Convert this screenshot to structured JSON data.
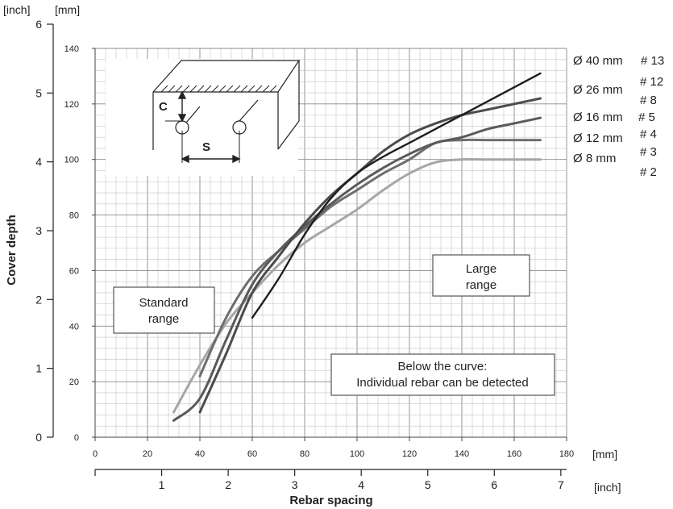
{
  "chart_data": {
    "type": "line",
    "title": "",
    "xlabel": "Rebar spacing",
    "ylabel": "Cover depth",
    "x_unit_primary": "[mm]",
    "x_unit_secondary": "[inch]",
    "y_unit_primary": "[mm]",
    "y_unit_secondary": "[inch]",
    "xlim": [
      0,
      180
    ],
    "ylim": [
      0,
      140
    ],
    "x_ticks_mm": [
      "0",
      "20",
      "40",
      "60",
      "80",
      "100",
      "120",
      "140",
      "160",
      "180"
    ],
    "x_ticks_inch": [
      "1",
      "2",
      "3",
      "4",
      "5",
      "6",
      "7"
    ],
    "y_ticks_mm": [
      "0",
      "20",
      "40",
      "60",
      "80",
      "100",
      "120",
      "140"
    ],
    "y_ticks_inch": [
      "0",
      "1",
      "2",
      "3",
      "4",
      "5",
      "6"
    ],
    "grid": true,
    "series": [
      {
        "name": "Ø 40 mm",
        "label_us": "# 13",
        "color": "#1e1e1e",
        "x": [
          60,
          70,
          80,
          90,
          100,
          110,
          120,
          130,
          140,
          150,
          160,
          170
        ],
        "y": [
          43,
          57,
          73,
          86,
          95,
          101,
          106,
          111,
          116,
          121,
          126,
          131
        ]
      },
      {
        "name": "Ø 26 mm",
        "label_us": "# 12",
        "color": "#4c4c4c",
        "x": [
          40,
          50,
          60,
          70,
          80,
          90,
          100,
          110,
          120,
          130,
          140,
          150,
          160,
          170
        ],
        "y": [
          9,
          30,
          52,
          65,
          77,
          87,
          95,
          103,
          109,
          113,
          116,
          118,
          120,
          122
        ]
      },
      {
        "name": "Ø 16 mm",
        "label_us": "# 8",
        "color": "#5a5a5a",
        "x": [
          30,
          40,
          50,
          60,
          70,
          80,
          90,
          100,
          110,
          120,
          130,
          140,
          150,
          160,
          170
        ],
        "y": [
          6,
          14,
          35,
          55,
          67,
          76,
          84,
          91,
          97,
          102,
          106,
          108,
          111,
          113,
          115
        ]
      },
      {
        "name": "Ø 12 mm",
        "label_us": "# 5",
        "color": "#6e6e6e",
        "x": [
          40,
          50,
          60,
          70,
          80,
          90,
          100,
          110,
          120,
          130,
          140,
          150,
          160,
          170
        ],
        "y": [
          22,
          43,
          58,
          67,
          75,
          83,
          89,
          95,
          100,
          106,
          107,
          107,
          107,
          107
        ]
      },
      {
        "name": "Ø 8 mm",
        "label_us": "# 4",
        "color": "#a6a6a6",
        "x": [
          30,
          40,
          50,
          60,
          70,
          80,
          90,
          100,
          110,
          120,
          130,
          140,
          150,
          160,
          170
        ],
        "y": [
          9,
          26,
          41,
          52,
          62,
          70,
          76,
          82,
          89,
          95,
          99,
          100,
          100,
          100,
          100
        ]
      }
    ],
    "extra_us_labels": [
      "# 3",
      "# 2"
    ],
    "annotations": {
      "standard_range": "Standard\nrange",
      "large_range": "Large\nrange",
      "below_curve": "Below the curve:\nIndividual rebar can be detected",
      "inset_cover_label": "C",
      "inset_spacing_label": "S"
    }
  }
}
